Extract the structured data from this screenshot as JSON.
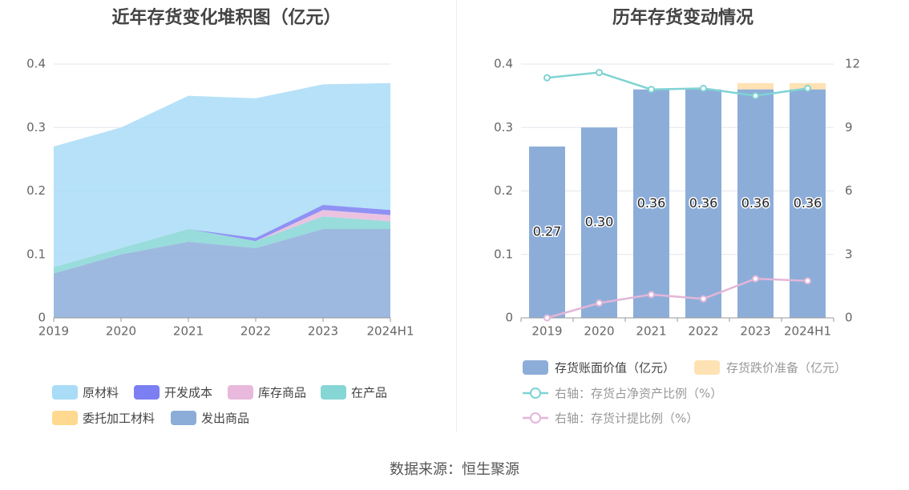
{
  "source": "数据来源：恒生聚源",
  "colors": {
    "raw_material": "#a9dcf7",
    "dev_cost": "#7b7ff2",
    "goods_stock": "#e8b9dc",
    "wip": "#86d6d6",
    "entrusted": "#ffd98f",
    "shipped": "#8dadd9",
    "book_value": "#8dadd9",
    "impairment": "#ffe2b3",
    "net_ratio_line": "#7fd3d3",
    "provision_line": "#e3b6d8"
  },
  "chart_data": [
    {
      "type": "area",
      "title": "近年存货变化堆积图（亿元）",
      "categories": [
        "2019",
        "2020",
        "2021",
        "2022",
        "2023",
        "2024H1"
      ],
      "ylim": [
        0,
        0.4
      ],
      "yticks": [
        "0",
        "0.1",
        "0.2",
        "0.3",
        "0.4"
      ],
      "grid": true,
      "legend_position": "bottom",
      "stack_order": [
        "shipped",
        "wip",
        "goods_stock",
        "dev_cost",
        "entrusted",
        "raw_material"
      ],
      "series": [
        {
          "key": "raw_material",
          "name": "原材料",
          "values": [
            0.19,
            0.19,
            0.21,
            0.22,
            0.19,
            0.2
          ]
        },
        {
          "key": "dev_cost",
          "name": "开发成本",
          "values": [
            0,
            0,
            0,
            0.005,
            0.008,
            0.008
          ]
        },
        {
          "key": "goods_stock",
          "name": "库存商品",
          "values": [
            0,
            0,
            0,
            0,
            0.01,
            0.01
          ]
        },
        {
          "key": "wip",
          "name": "在产品",
          "values": [
            0.01,
            0.01,
            0.02,
            0.011,
            0.02,
            0.012
          ]
        },
        {
          "key": "entrusted",
          "name": "委托加工材料",
          "values": [
            0,
            0,
            0,
            0,
            0,
            0
          ]
        },
        {
          "key": "shipped",
          "name": "发出商品",
          "values": [
            0.07,
            0.1,
            0.12,
            0.11,
            0.14,
            0.14
          ]
        }
      ]
    },
    {
      "type": "bar",
      "title": "历年存货变动情况",
      "categories": [
        "2019",
        "2020",
        "2021",
        "2022",
        "2023",
        "2024H1"
      ],
      "ylim": [
        0,
        0.4
      ],
      "yticks": [
        "0",
        "0.1",
        "0.2",
        "0.3",
        "0.4"
      ],
      "y2lim": [
        0,
        12
      ],
      "y2ticks": [
        "0",
        "3",
        "6",
        "9",
        "12"
      ],
      "grid": true,
      "legend_position": "bottom",
      "series": [
        {
          "key": "book_value",
          "name": "存货账面价值（亿元）",
          "kind": "bar",
          "values": [
            0.27,
            0.3,
            0.36,
            0.36,
            0.36,
            0.36
          ],
          "labels": [
            "0.27",
            "0.30",
            "0.36",
            "0.36",
            "0.36",
            "0.36"
          ]
        },
        {
          "key": "impairment",
          "name": "存货跌价准备（亿元）",
          "kind": "bar",
          "values": [
            0,
            0,
            0,
            0,
            0.01,
            0.01
          ]
        },
        {
          "key": "net_ratio_line",
          "name": "右轴：存货占净资产比例（%）",
          "kind": "line",
          "axis": "right",
          "values": [
            11.35,
            11.6,
            10.8,
            10.85,
            10.5,
            10.85
          ]
        },
        {
          "key": "provision_line",
          "name": "右轴：存货计提比例（%）",
          "kind": "line",
          "axis": "right",
          "values": [
            0,
            0.7,
            1.1,
            0.9,
            1.85,
            1.75
          ]
        }
      ]
    }
  ]
}
